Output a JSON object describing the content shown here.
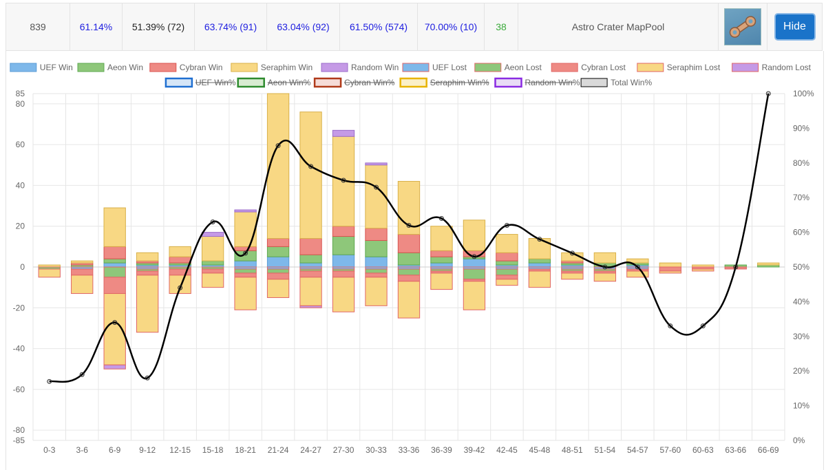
{
  "summary_row": {
    "games": "839",
    "uef_winrate": "61.14%",
    "aeon_winrate": "51.39% (72)",
    "cybran_winrate": "63.74% (91)",
    "seraphim_winrate": "63.04% (92)",
    "random_winrate": "61.50% (574)",
    "total_winrate": "70.00% (10)",
    "count": "38",
    "map_name": "Astro Crater MapPool",
    "map_thumbnail_icon": "map-thumbnail-icon",
    "hide_label": "Hide"
  },
  "chart_data": {
    "type": "bar",
    "title": "",
    "xlabel": "",
    "ylabel": "",
    "categories": [
      "0-3",
      "3-6",
      "6-9",
      "9-12",
      "12-15",
      "15-18",
      "18-21",
      "21-24",
      "24-27",
      "27-30",
      "30-33",
      "33-36",
      "36-39",
      "39-42",
      "42-45",
      "45-48",
      "48-51",
      "51-54",
      "54-57",
      "57-60",
      "60-63",
      "63-66",
      "66-69"
    ],
    "ylim": [
      -85,
      85
    ],
    "yticks": [
      -85,
      -80,
      -60,
      -40,
      -20,
      0,
      20,
      40,
      60,
      80,
      85
    ],
    "y2lim": [
      0,
      100
    ],
    "y2ticks": [
      "0%",
      "10%",
      "20%",
      "30%",
      "40%",
      "50%",
      "60%",
      "70%",
      "80%",
      "90%",
      "100%"
    ],
    "grid": true,
    "legend_position": "top",
    "legend": [
      {
        "label": "UEF Win",
        "fill": "#7eb8ea",
        "stroke": "#5b9bd5",
        "hidden": false
      },
      {
        "label": "Aeon Win",
        "fill": "#8ec77a",
        "stroke": "#5ea850",
        "hidden": false
      },
      {
        "label": "Cybran Win",
        "fill": "#ee8a84",
        "stroke": "#d9534f",
        "hidden": false
      },
      {
        "label": "Seraphim Win",
        "fill": "#f8d884",
        "stroke": "#d8b04a",
        "hidden": false
      },
      {
        "label": "Random Win",
        "fill": "#c59ae6",
        "stroke": "#9b6cc9",
        "hidden": false
      },
      {
        "label": "UEF Lost",
        "fill": "#7eb8ea",
        "stroke": "#e06666",
        "hidden": false
      },
      {
        "label": "Aeon Lost",
        "fill": "#8ec77a",
        "stroke": "#e06666",
        "hidden": false
      },
      {
        "label": "Cybran Lost",
        "fill": "#ee8a84",
        "stroke": "#e06666",
        "hidden": false
      },
      {
        "label": "Seraphim Lost",
        "fill": "#f8d884",
        "stroke": "#e06666",
        "hidden": false
      },
      {
        "label": "Random Lost",
        "fill": "#c59ae6",
        "stroke": "#e06666",
        "hidden": false
      },
      {
        "label": "UEF Win%",
        "fill": "#d6e6f7",
        "stroke": "#1f6fd1",
        "hidden": true
      },
      {
        "label": "Aeon Win%",
        "fill": "#d9ecd2",
        "stroke": "#2e8b2e",
        "hidden": true
      },
      {
        "label": "Cybran Win%",
        "fill": "#f6dcd8",
        "stroke": "#b03a1a",
        "hidden": true
      },
      {
        "label": "Seraphim Win%",
        "fill": "#fbf0c8",
        "stroke": "#e8b400",
        "hidden": true
      },
      {
        "label": "Random Win%",
        "fill": "#e9dcf6",
        "stroke": "#8a2be2",
        "hidden": true
      },
      {
        "label": "Total Win%",
        "fill": "#d9d9d9",
        "stroke": "#000000",
        "hidden": false
      }
    ],
    "win_series": [
      {
        "name": "UEF Win",
        "values": [
          0,
          0,
          2,
          1,
          1,
          1,
          3,
          5,
          2,
          6,
          5,
          1,
          2,
          4,
          1,
          2,
          1,
          0,
          1,
          0,
          0,
          0,
          0
        ]
      },
      {
        "name": "Aeon Win",
        "values": [
          0,
          1,
          2,
          1,
          1,
          2,
          5,
          5,
          4,
          9,
          8,
          6,
          3,
          1,
          2,
          2,
          1,
          2,
          1,
          0,
          0,
          1,
          1
        ]
      },
      {
        "name": "Cybran Win",
        "values": [
          0,
          1,
          6,
          1,
          3,
          0,
          2,
          4,
          8,
          5,
          6,
          9,
          3,
          3,
          4,
          0,
          1,
          0,
          0,
          0,
          0,
          0,
          0
        ]
      },
      {
        "name": "Seraphim Win",
        "values": [
          1,
          1,
          19,
          4,
          5,
          12,
          17,
          71,
          62,
          44,
          31,
          26,
          12,
          15,
          9,
          10,
          4,
          5,
          2,
          2,
          1,
          0,
          1
        ]
      },
      {
        "name": "Random Win",
        "values": [
          0,
          0,
          0,
          0,
          0,
          2,
          1,
          0,
          0,
          3,
          1,
          0,
          0,
          0,
          0,
          0,
          0,
          0,
          0,
          0,
          0,
          0,
          0
        ]
      }
    ],
    "lost_series": [
      {
        "name": "UEF Lost",
        "values": [
          0,
          1,
          0,
          1,
          0,
          0,
          1,
          1,
          1,
          1,
          1,
          1,
          1,
          1,
          1,
          1,
          1,
          1,
          1,
          0,
          0,
          0,
          0
        ]
      },
      {
        "name": "Aeon Lost",
        "values": [
          1,
          0,
          5,
          1,
          1,
          1,
          2,
          2,
          1,
          1,
          2,
          3,
          1,
          5,
          3,
          0,
          1,
          1,
          0,
          0,
          0,
          0,
          0
        ]
      },
      {
        "name": "Cybran Lost",
        "values": [
          0,
          3,
          8,
          2,
          3,
          2,
          2,
          3,
          3,
          3,
          2,
          3,
          1,
          1,
          2,
          1,
          1,
          1,
          1,
          2,
          1,
          1,
          0
        ]
      },
      {
        "name": "Seraphim Lost",
        "values": [
          4,
          9,
          35,
          28,
          9,
          7,
          16,
          9,
          14,
          17,
          14,
          18,
          8,
          14,
          3,
          8,
          3,
          4,
          3,
          1,
          1,
          0,
          0
        ]
      },
      {
        "name": "Random Lost",
        "values": [
          0,
          0,
          2,
          0,
          0,
          0,
          0,
          0,
          1,
          0,
          0,
          0,
          0,
          0,
          0,
          0,
          0,
          0,
          0,
          0,
          0,
          0,
          0
        ]
      }
    ],
    "total_win_pct": [
      17,
      19,
      34,
      18,
      44,
      63,
      54,
      85,
      79,
      75,
      73,
      62,
      64,
      53,
      62,
      58,
      54,
      50,
      50,
      33,
      33,
      50,
      100
    ]
  }
}
